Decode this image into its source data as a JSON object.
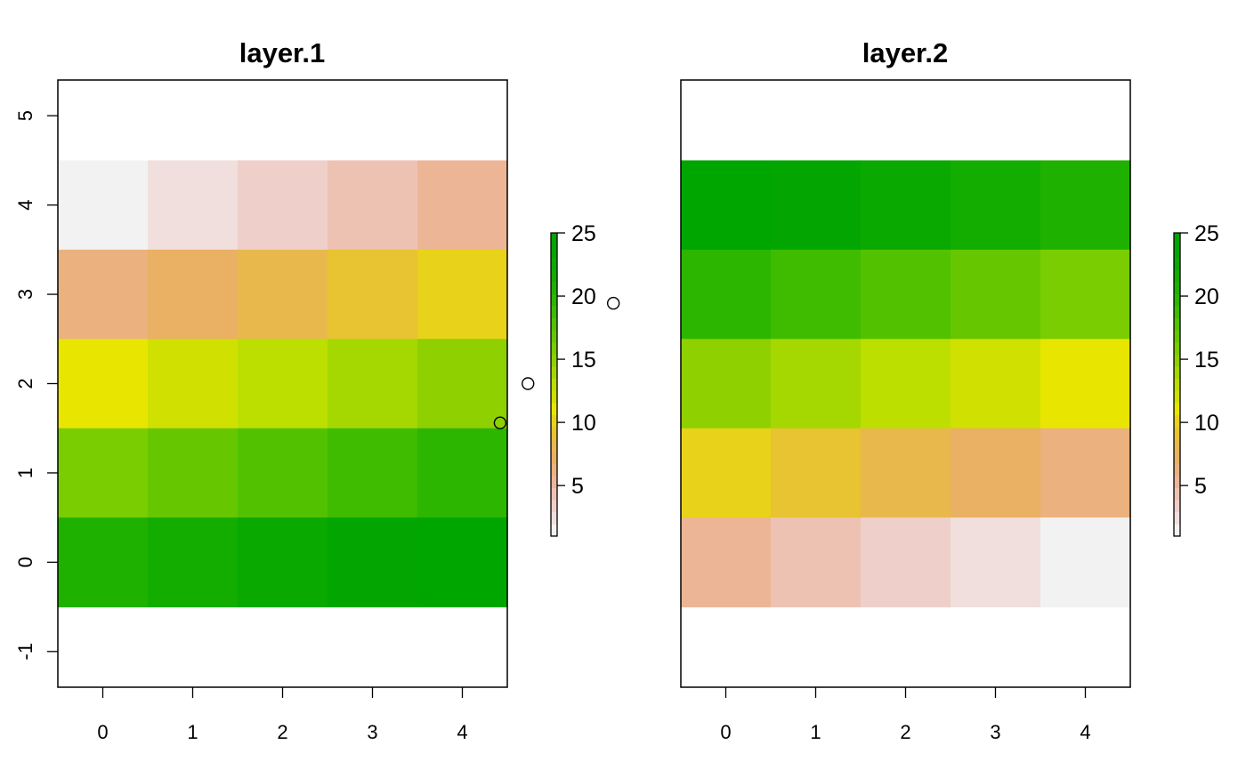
{
  "chart_data": [
    {
      "type": "heatmap",
      "title": "layer.1",
      "x_ticks": [
        "0",
        "1",
        "2",
        "3",
        "4"
      ],
      "y_ticks": [
        "-1",
        "0",
        "1",
        "2",
        "3",
        "4",
        "5"
      ],
      "xlim": [
        -0.5,
        4.5
      ],
      "ylim": [
        -1.4,
        5.4
      ],
      "rows_y": [
        4,
        3,
        2,
        1,
        0
      ],
      "cols_x": [
        0,
        1,
        2,
        3,
        4
      ],
      "values": [
        [
          1,
          2,
          3,
          4,
          5
        ],
        [
          6,
          7,
          8,
          9,
          10
        ],
        [
          11,
          12,
          13,
          14,
          15
        ],
        [
          16,
          17,
          18,
          19,
          20
        ],
        [
          21,
          22,
          23,
          24,
          25
        ]
      ],
      "legend": {
        "range": [
          1,
          25
        ],
        "ticks": [
          "5",
          "10",
          "15",
          "20",
          "25"
        ],
        "tick_values": [
          5,
          10,
          15,
          20,
          25
        ]
      },
      "points": [
        {
          "x": 4.42,
          "y": 1.56
        },
        {
          "x": 4.73,
          "y": 2.0
        },
        {
          "x": 5.68,
          "y": 2.9
        }
      ]
    },
    {
      "type": "heatmap",
      "title": "layer.2",
      "x_ticks": [
        "0",
        "1",
        "2",
        "3",
        "4"
      ],
      "y_ticks": [],
      "xlim": [
        -0.5,
        4.5
      ],
      "ylim": [
        -1.4,
        5.4
      ],
      "rows_y": [
        4,
        3,
        2,
        1,
        0
      ],
      "cols_x": [
        0,
        1,
        2,
        3,
        4
      ],
      "values": [
        [
          25,
          24,
          23,
          22,
          21
        ],
        [
          20,
          19,
          18,
          17,
          16
        ],
        [
          15,
          14,
          13,
          12,
          11
        ],
        [
          10,
          9,
          8,
          7,
          6
        ],
        [
          5,
          4,
          3,
          2,
          1
        ]
      ],
      "legend": {
        "range": [
          1,
          25
        ],
        "ticks": [
          "5",
          "10",
          "15",
          "20",
          "25"
        ],
        "tick_values": [
          5,
          10,
          15,
          20,
          25
        ]
      },
      "points": []
    }
  ],
  "palette": [
    "#f2f2f2",
    "#f0dfdd",
    "#efcfca",
    "#eec2b3",
    "#ecb696",
    "#ebb17e",
    "#eab064",
    "#e8b84d",
    "#e8c332",
    "#e8d21a",
    "#e8e600",
    "#d0e000",
    "#bcdf00",
    "#a4d800",
    "#8fd000",
    "#79cd00",
    "#66c700",
    "#52c200",
    "#3fbc00",
    "#2cb600",
    "#1fb100",
    "#13ad00",
    "#09a900",
    "#03a600",
    "#00a600"
  ]
}
